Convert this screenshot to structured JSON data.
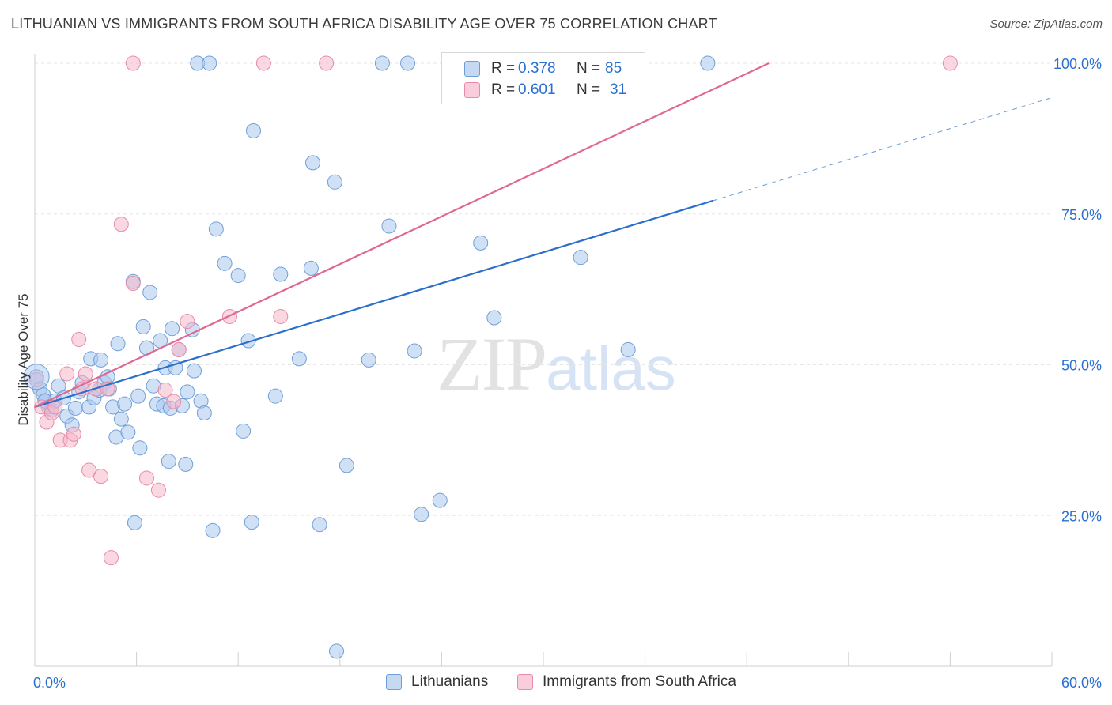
{
  "header": {
    "title": "LITHUANIAN VS IMMIGRANTS FROM SOUTH AFRICA DISABILITY AGE OVER 75 CORRELATION CHART",
    "source": "Source: ZipAtlas.com"
  },
  "watermark": {
    "zip": "ZIP",
    "atlas": "atlas"
  },
  "legend": {
    "rows": [
      {
        "r_label": "R = ",
        "r_value": "0.378",
        "n_label": "N = ",
        "n_value": "85"
      },
      {
        "r_label": "R = ",
        "r_value": "0.601",
        "n_label": "N = ",
        "n_value": "31"
      }
    ]
  },
  "bottom_legend": {
    "series1": "Lithuanians",
    "series2": "Immigrants from South Africa"
  },
  "colors": {
    "blue_fill": "#a9c8ee",
    "blue_stroke": "#6f9fd8",
    "blue_line": "#2b6fcb",
    "pink_fill": "#f6b8cb",
    "pink_stroke": "#e98aa8",
    "pink_line": "#e06890",
    "axis_label": "#2a6fd1",
    "grid": "#e6e6e6"
  },
  "chart_data": {
    "type": "scatter",
    "title": "LITHUANIAN VS IMMIGRANTS FROM SOUTH AFRICA DISABILITY AGE OVER 75 CORRELATION CHART",
    "xlabel": "",
    "ylabel": "Disability Age Over 75",
    "xlim": [
      0,
      60
    ],
    "ylim": [
      0,
      100
    ],
    "x_tick_labels": [
      "0.0%",
      "60.0%"
    ],
    "y_tick_labels": [
      "25.0%",
      "50.0%",
      "75.0%",
      "100.0%"
    ],
    "y_ticks": [
      25,
      50,
      75,
      100
    ],
    "grid": true,
    "series": [
      {
        "name": "Lithuanians",
        "r": 0.378,
        "n": 85,
        "trend": {
          "x": [
            0,
            40
          ],
          "y": [
            43,
            77.2
          ],
          "dashed_to": [
            60,
            94.3
          ]
        },
        "points": [
          [
            0.1,
            48
          ],
          [
            0.3,
            46
          ],
          [
            0.5,
            45
          ],
          [
            0.6,
            44
          ],
          [
            0.8,
            43
          ],
          [
            1.0,
            42.5
          ],
          [
            1.2,
            44
          ],
          [
            1.4,
            46.5
          ],
          [
            1.7,
            44.5
          ],
          [
            1.9,
            41.5
          ],
          [
            2.2,
            40
          ],
          [
            2.4,
            42.8
          ],
          [
            2.6,
            45.5
          ],
          [
            2.8,
            47
          ],
          [
            3.2,
            43
          ],
          [
            3.3,
            51
          ],
          [
            3.5,
            44.5
          ],
          [
            3.8,
            45.8
          ],
          [
            3.9,
            50.8
          ],
          [
            4.1,
            47
          ],
          [
            4.3,
            48
          ],
          [
            4.4,
            46
          ],
          [
            4.6,
            43
          ],
          [
            4.8,
            38
          ],
          [
            4.9,
            53.5
          ],
          [
            5.1,
            41
          ],
          [
            5.3,
            43.5
          ],
          [
            5.5,
            38.8
          ],
          [
            5.8,
            63.8
          ],
          [
            5.9,
            23.8
          ],
          [
            6.1,
            44.8
          ],
          [
            6.2,
            36.2
          ],
          [
            6.4,
            56.3
          ],
          [
            6.6,
            52.8
          ],
          [
            6.8,
            62
          ],
          [
            7.0,
            46.5
          ],
          [
            7.2,
            43.5
          ],
          [
            7.4,
            54
          ],
          [
            7.6,
            43.2
          ],
          [
            7.7,
            49.5
          ],
          [
            7.9,
            34
          ],
          [
            8.0,
            42.8
          ],
          [
            8.1,
            56
          ],
          [
            8.3,
            49.5
          ],
          [
            8.5,
            52.5
          ],
          [
            8.7,
            43.2
          ],
          [
            8.9,
            33.5
          ],
          [
            9.0,
            45.5
          ],
          [
            9.3,
            55.8
          ],
          [
            9.4,
            49
          ],
          [
            9.6,
            100
          ],
          [
            9.8,
            44
          ],
          [
            10.0,
            42
          ],
          [
            10.3,
            100
          ],
          [
            10.5,
            22.5
          ],
          [
            10.7,
            72.5
          ],
          [
            11.2,
            66.8
          ],
          [
            12.0,
            64.8
          ],
          [
            12.3,
            39
          ],
          [
            12.6,
            54
          ],
          [
            12.8,
            23.9
          ],
          [
            12.9,
            88.8
          ],
          [
            14.2,
            44.8
          ],
          [
            14.5,
            65
          ],
          [
            15.6,
            51
          ],
          [
            16.3,
            66
          ],
          [
            16.4,
            83.5
          ],
          [
            16.8,
            23.5
          ],
          [
            17.7,
            80.3
          ],
          [
            17.8,
            2.5
          ],
          [
            18.4,
            33.3
          ],
          [
            19.7,
            50.8
          ],
          [
            20.5,
            100
          ],
          [
            20.9,
            73
          ],
          [
            22.0,
            100
          ],
          [
            22.4,
            52.3
          ],
          [
            22.8,
            25.2
          ],
          [
            23.9,
            27.5
          ],
          [
            24.5,
            100
          ],
          [
            26.3,
            70.2
          ],
          [
            27.1,
            57.8
          ],
          [
            32.2,
            67.8
          ],
          [
            35.0,
            52.5
          ],
          [
            39.7,
            100
          ],
          [
            0.6,
            44
          ]
        ]
      },
      {
        "name": "Immigrants from South Africa",
        "r": 0.601,
        "n": 31,
        "trend": {
          "x": [
            0,
            43.3
          ],
          "y": [
            43,
            100
          ]
        },
        "points": [
          [
            0.1,
            47.5
          ],
          [
            0.4,
            43
          ],
          [
            0.7,
            40.5
          ],
          [
            1.0,
            42
          ],
          [
            1.2,
            43
          ],
          [
            1.5,
            37.5
          ],
          [
            1.9,
            48.5
          ],
          [
            2.1,
            37.5
          ],
          [
            2.3,
            38.5
          ],
          [
            2.6,
            54.2
          ],
          [
            2.8,
            46
          ],
          [
            3.0,
            48.5
          ],
          [
            3.2,
            32.5
          ],
          [
            3.6,
            46
          ],
          [
            3.9,
            31.5
          ],
          [
            4.3,
            46
          ],
          [
            4.5,
            18
          ],
          [
            5.1,
            73.3
          ],
          [
            5.8,
            100
          ],
          [
            5.8,
            63.5
          ],
          [
            6.6,
            31.2
          ],
          [
            7.3,
            29.2
          ],
          [
            7.7,
            45.8
          ],
          [
            8.5,
            52.5
          ],
          [
            9.0,
            57.2
          ],
          [
            8.2,
            43.9
          ],
          [
            11.5,
            58
          ],
          [
            13.5,
            100
          ],
          [
            14.5,
            58
          ],
          [
            17.2,
            100
          ],
          [
            54.0,
            100
          ]
        ]
      }
    ]
  }
}
